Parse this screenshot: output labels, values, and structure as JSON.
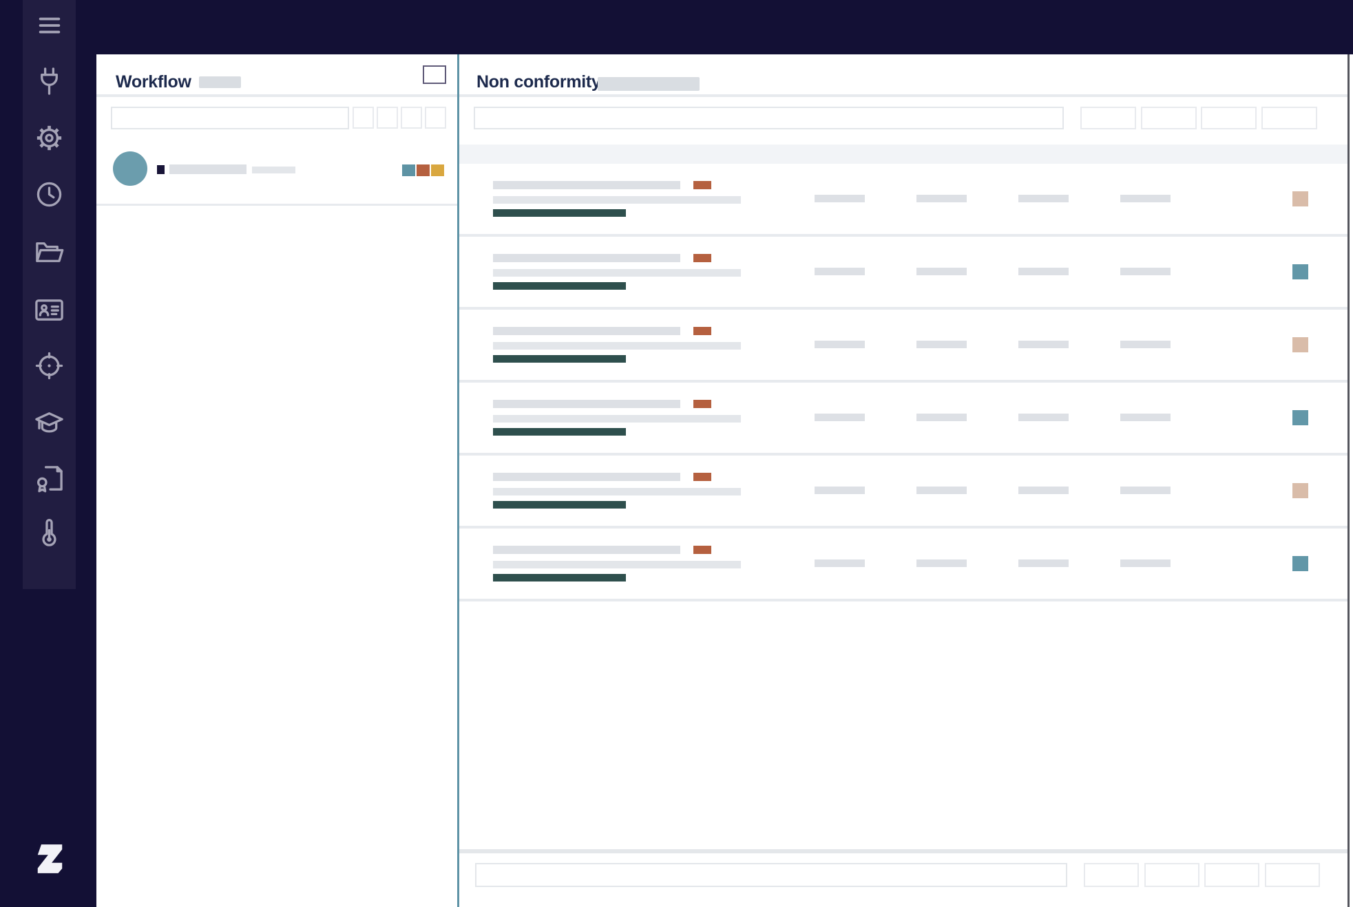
{
  "brand": {
    "logo_text": "Z"
  },
  "sidebar": {
    "menu_icon": "menu-icon",
    "items": [
      {
        "name": "power-plug-icon"
      },
      {
        "name": "settings-gear-icon"
      },
      {
        "name": "history-clock-icon"
      },
      {
        "name": "folder-open-icon"
      },
      {
        "name": "contact-card-icon"
      },
      {
        "name": "target-crosshair-icon"
      },
      {
        "name": "graduation-cap-icon"
      },
      {
        "name": "certificate-icon"
      },
      {
        "name": "thermometer-icon"
      }
    ],
    "icon_tops": [
      95,
      177,
      259,
      343,
      427,
      508,
      591,
      672,
      751
    ]
  },
  "workflow": {
    "title": "Workflow",
    "search": {
      "value": "",
      "placeholder": ""
    },
    "filter_buttons": 4,
    "item": {
      "chips": [
        "teal",
        "rust",
        "yellow"
      ]
    }
  },
  "nonconformity": {
    "title": "Non conformity",
    "search": {
      "value": "",
      "placeholder": ""
    },
    "toolbar_buttons": 4,
    "rows": [
      {
        "chip": "beige"
      },
      {
        "chip": "blue"
      },
      {
        "chip": "beige"
      },
      {
        "chip": "blue"
      },
      {
        "chip": "beige"
      },
      {
        "chip": "blue"
      }
    ],
    "pagination": {
      "input_value": "",
      "buttons": 4
    }
  },
  "colors": {
    "navy": "#131035",
    "rail": "#211d41",
    "icon": "#a5a3b6",
    "title": "#1d2a4d",
    "skeleton": "#d9dde2",
    "skeleton_bar": "#dde0e5",
    "skeleton_light": "#e3e6ea",
    "band": "#f2f4f7",
    "divider": "#e7eaee",
    "separator": "#5e93a6",
    "teal": "#5e93a4",
    "rust": "#b5603f",
    "yellow": "#d9a73f",
    "dark_teal": "#2e4f4d",
    "beige": "#d9bca9",
    "blue": "#6297a8",
    "avatar": "#6b9dad"
  }
}
